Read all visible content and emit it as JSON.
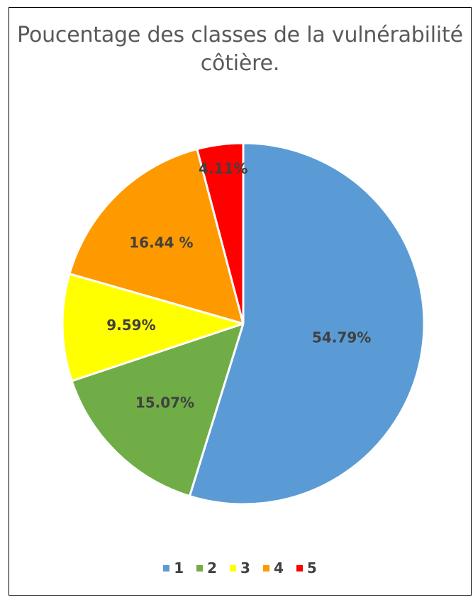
{
  "chart_data": {
    "type": "pie",
    "title": "Poucentage des classes de la vulnérabilité côtière.",
    "title_lines": [
      "Poucentage des classes de la vulnérabilité",
      "côtière."
    ],
    "categories": [
      "1",
      "2",
      "3",
      "4",
      "5"
    ],
    "values": [
      54.79,
      15.07,
      9.59,
      16.44,
      4.11
    ],
    "data_labels": [
      "54.79%",
      "15.07%",
      "9.59%",
      "16.44 %",
      "4.11%"
    ],
    "colors": [
      "#5B9BD5",
      "#70AD47",
      "#FFFF00",
      "#FF9900",
      "#FF0000"
    ],
    "start_angle": "12 o'clock",
    "direction": "clockwise",
    "legend_position": "bottom"
  }
}
